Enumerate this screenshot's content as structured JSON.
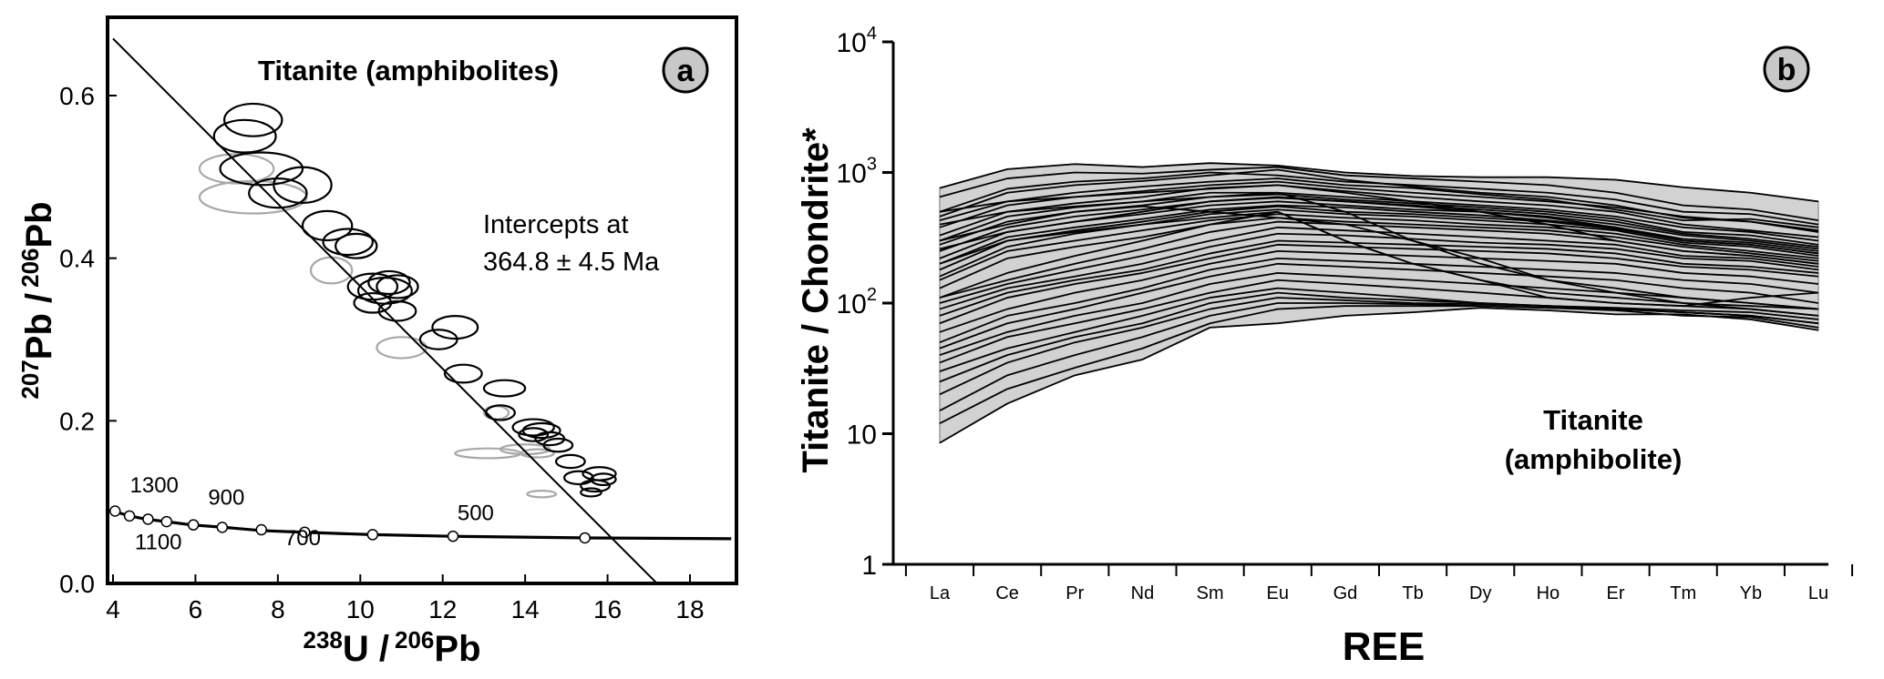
{
  "chart_data": [
    {
      "panel_label": "a",
      "type": "scatter",
      "title": "Titanite (amphibolites)",
      "xlabel": {
        "iso": "238",
        "rest": "U /",
        "iso2": "206",
        "rest2": "Pb"
      },
      "ylabel": {
        "iso": "207",
        "rest": "Pb /",
        "iso2": "206",
        "rest2": "Pb"
      },
      "xlim": [
        4,
        19
      ],
      "ylim": [
        0.0,
        0.68
      ],
      "xticks": [
        4,
        6,
        8,
        10,
        12,
        14,
        16,
        18
      ],
      "xtick_labels": [
        "4",
        "6",
        "8",
        "10",
        "12",
        "14",
        "16",
        "18"
      ],
      "yticks": [
        0.0,
        0.2,
        0.4,
        0.6
      ],
      "ytick_labels": [
        "0.0",
        "0.2",
        "0.4",
        "0.6"
      ],
      "annotation": [
        "Intercepts at",
        "364.8 ± 4.5 Ma"
      ],
      "discordia_line": {
        "x": [
          4.0,
          17.2
        ],
        "y": [
          0.67,
          0.0
        ]
      },
      "concordia": {
        "x": [
          4.0,
          4.4,
          4.8,
          5.3,
          5.9,
          6.7,
          7.6,
          8.6,
          10.3,
          12.2,
          15.5,
          19.0
        ],
        "y": [
          0.089,
          0.083,
          0.079,
          0.076,
          0.072,
          0.069,
          0.065,
          0.063,
          0.06,
          0.058,
          0.056,
          0.055
        ],
        "age_markers": [
          {
            "x": 4.05,
            "y": 0.089
          },
          {
            "x": 4.4,
            "y": 0.083
          },
          {
            "x": 4.85,
            "y": 0.079
          },
          {
            "x": 5.3,
            "y": 0.076
          },
          {
            "x": 5.95,
            "y": 0.072
          },
          {
            "x": 6.65,
            "y": 0.069
          },
          {
            "x": 7.6,
            "y": 0.066
          },
          {
            "x": 8.65,
            "y": 0.063
          },
          {
            "x": 10.3,
            "y": 0.06
          },
          {
            "x": 12.25,
            "y": 0.058
          },
          {
            "x": 15.45,
            "y": 0.056
          }
        ],
        "age_labels": [
          {
            "text": "1300",
            "x": 5.0,
            "y": 0.112
          },
          {
            "text": "900",
            "x": 6.75,
            "y": 0.097
          },
          {
            "text": "1100",
            "x": 5.1,
            "y": 0.042
          },
          {
            "text": "700",
            "x": 8.6,
            "y": 0.047
          },
          {
            "text": "500",
            "x": 12.8,
            "y": 0.078
          }
        ]
      },
      "ellipses_black": [
        {
          "x": 7.4,
          "y": 0.57,
          "rx": 0.7,
          "ry": 0.02
        },
        {
          "x": 7.2,
          "y": 0.55,
          "rx": 0.75,
          "ry": 0.02
        },
        {
          "x": 7.6,
          "y": 0.51,
          "rx": 1.0,
          "ry": 0.02
        },
        {
          "x": 8.0,
          "y": 0.48,
          "rx": 0.7,
          "ry": 0.018
        },
        {
          "x": 8.6,
          "y": 0.49,
          "rx": 0.7,
          "ry": 0.022
        },
        {
          "x": 9.2,
          "y": 0.44,
          "rx": 0.6,
          "ry": 0.018
        },
        {
          "x": 9.7,
          "y": 0.42,
          "rx": 0.6,
          "ry": 0.016
        },
        {
          "x": 9.9,
          "y": 0.415,
          "rx": 0.5,
          "ry": 0.015
        },
        {
          "x": 10.3,
          "y": 0.365,
          "rx": 0.6,
          "ry": 0.016
        },
        {
          "x": 10.6,
          "y": 0.36,
          "rx": 0.65,
          "ry": 0.016
        },
        {
          "x": 10.9,
          "y": 0.365,
          "rx": 0.5,
          "ry": 0.014
        },
        {
          "x": 10.7,
          "y": 0.37,
          "rx": 0.5,
          "ry": 0.014
        },
        {
          "x": 10.3,
          "y": 0.345,
          "rx": 0.45,
          "ry": 0.012
        },
        {
          "x": 10.9,
          "y": 0.335,
          "rx": 0.45,
          "ry": 0.012
        },
        {
          "x": 12.3,
          "y": 0.315,
          "rx": 0.55,
          "ry": 0.014
        },
        {
          "x": 11.9,
          "y": 0.3,
          "rx": 0.45,
          "ry": 0.012
        },
        {
          "x": 12.5,
          "y": 0.258,
          "rx": 0.45,
          "ry": 0.011
        },
        {
          "x": 13.5,
          "y": 0.24,
          "rx": 0.5,
          "ry": 0.01
        },
        {
          "x": 13.4,
          "y": 0.21,
          "rx": 0.35,
          "ry": 0.009
        },
        {
          "x": 14.2,
          "y": 0.192,
          "rx": 0.5,
          "ry": 0.01
        },
        {
          "x": 14.4,
          "y": 0.188,
          "rx": 0.45,
          "ry": 0.009
        },
        {
          "x": 14.2,
          "y": 0.183,
          "rx": 0.35,
          "ry": 0.008
        },
        {
          "x": 14.6,
          "y": 0.178,
          "rx": 0.35,
          "ry": 0.008
        },
        {
          "x": 14.8,
          "y": 0.17,
          "rx": 0.35,
          "ry": 0.008
        },
        {
          "x": 15.1,
          "y": 0.15,
          "rx": 0.35,
          "ry": 0.008
        },
        {
          "x": 15.8,
          "y": 0.135,
          "rx": 0.4,
          "ry": 0.008
        },
        {
          "x": 15.9,
          "y": 0.128,
          "rx": 0.3,
          "ry": 0.007
        },
        {
          "x": 15.3,
          "y": 0.13,
          "rx": 0.35,
          "ry": 0.008
        },
        {
          "x": 15.7,
          "y": 0.12,
          "rx": 0.35,
          "ry": 0.007
        },
        {
          "x": 15.6,
          "y": 0.112,
          "rx": 0.25,
          "ry": 0.005
        }
      ],
      "ellipses_gray": [
        {
          "x": 7.0,
          "y": 0.51,
          "rx": 0.9,
          "ry": 0.018
        },
        {
          "x": 7.4,
          "y": 0.475,
          "rx": 1.3,
          "ry": 0.02
        },
        {
          "x": 9.3,
          "y": 0.385,
          "rx": 0.5,
          "ry": 0.016
        },
        {
          "x": 11.0,
          "y": 0.29,
          "rx": 0.6,
          "ry": 0.013
        },
        {
          "x": 13.3,
          "y": 0.21,
          "rx": 0.3,
          "ry": 0.008
        },
        {
          "x": 13.1,
          "y": 0.16,
          "rx": 0.8,
          "ry": 0.006
        },
        {
          "x": 14.0,
          "y": 0.165,
          "rx": 0.6,
          "ry": 0.006
        },
        {
          "x": 14.3,
          "y": 0.16,
          "rx": 0.4,
          "ry": 0.005
        },
        {
          "x": 14.4,
          "y": 0.11,
          "rx": 0.35,
          "ry": 0.004
        }
      ]
    },
    {
      "panel_label": "b",
      "type": "line",
      "title": [
        "Titanite",
        "(amphibolite)"
      ],
      "xlabel": "REE",
      "ylabel": "Titanite / Chondrite*",
      "y_scale": "log",
      "ylim": [
        1,
        10000
      ],
      "yticks": [
        1,
        10,
        100,
        1000,
        10000
      ],
      "ytick_labels": [
        {
          "base": "1",
          "exp": ""
        },
        {
          "base": "10",
          "exp": ""
        },
        {
          "base": "10",
          "exp": "2"
        },
        {
          "base": "10",
          "exp": "3"
        },
        {
          "base": "10",
          "exp": "4"
        }
      ],
      "categories": [
        "La",
        "Ce",
        "Pr",
        "Nd",
        "Sm",
        "Eu",
        "Gd",
        "Tb",
        "Dy",
        "Ho",
        "Er",
        "Tm",
        "Yb",
        "Lu"
      ],
      "envelope": {
        "upper": [
          760,
          1060,
          1160,
          1100,
          1180,
          1130,
          1000,
          940,
          920,
          920,
          880,
          770,
          700,
          600
        ],
        "lower": [
          8.5,
          17,
          28,
          37,
          65,
          70,
          80,
          85,
          92,
          88,
          82,
          82,
          75,
          62
        ]
      },
      "series": [
        {
          "values": [
            760,
            1060,
            1160,
            1100,
            1180,
            1130,
            1000,
            940,
            920,
            920,
            880,
            770,
            700,
            600
          ]
        },
        {
          "values": [
            650,
            900,
            1000,
            980,
            1050,
            1100,
            950,
            900,
            850,
            800,
            700,
            560,
            520,
            430
          ]
        },
        {
          "values": [
            500,
            750,
            850,
            900,
            1000,
            950,
            850,
            800,
            750,
            700,
            620,
            500,
            480,
            400
          ]
        },
        {
          "values": [
            460,
            700,
            800,
            860,
            950,
            1050,
            880,
            780,
            700,
            650,
            560,
            450,
            420,
            360
          ]
        },
        {
          "values": [
            430,
            600,
            700,
            780,
            850,
            900,
            800,
            760,
            680,
            620,
            520,
            430,
            440,
            380
          ]
        },
        {
          "values": [
            380,
            560,
            650,
            720,
            800,
            850,
            760,
            700,
            650,
            600,
            540,
            460,
            420,
            350
          ]
        },
        {
          "values": [
            330,
            500,
            580,
            650,
            760,
            800,
            720,
            650,
            600,
            560,
            500,
            400,
            360,
            320
          ]
        },
        {
          "values": [
            300,
            460,
            540,
            600,
            700,
            700,
            650,
            600,
            560,
            520,
            460,
            380,
            350,
            300
          ]
        },
        {
          "values": [
            280,
            420,
            500,
            560,
            650,
            680,
            620,
            580,
            540,
            500,
            440,
            350,
            330,
            280
          ]
        },
        {
          "values": [
            250,
            380,
            460,
            520,
            600,
            640,
            600,
            560,
            520,
            480,
            420,
            340,
            310,
            270
          ]
        },
        {
          "values": [
            220,
            350,
            420,
            480,
            560,
            600,
            560,
            520,
            500,
            460,
            400,
            330,
            300,
            260
          ]
        },
        {
          "values": [
            200,
            320,
            380,
            440,
            520,
            560,
            540,
            500,
            470,
            430,
            380,
            310,
            290,
            250
          ]
        },
        {
          "values": [
            180,
            300,
            360,
            420,
            500,
            550,
            500,
            480,
            450,
            420,
            370,
            300,
            280,
            240
          ]
        },
        {
          "values": [
            160,
            270,
            340,
            400,
            480,
            520,
            480,
            460,
            430,
            400,
            360,
            290,
            270,
            230
          ]
        },
        {
          "values": [
            150,
            250,
            300,
            360,
            430,
            480,
            450,
            430,
            400,
            380,
            340,
            280,
            250,
            220
          ]
        },
        {
          "values": [
            130,
            220,
            270,
            320,
            400,
            450,
            420,
            400,
            380,
            360,
            320,
            270,
            240,
            210
          ]
        },
        {
          "values": [
            110,
            150,
            200,
            260,
            350,
            420,
            400,
            380,
            360,
            340,
            300,
            250,
            230,
            200
          ]
        },
        {
          "values": [
            100,
            140,
            180,
            230,
            300,
            380,
            360,
            340,
            320,
            300,
            280,
            230,
            220,
            190
          ]
        },
        {
          "values": [
            90,
            130,
            160,
            200,
            270,
            340,
            330,
            310,
            290,
            280,
            260,
            220,
            210,
            180
          ]
        },
        {
          "values": [
            80,
            120,
            150,
            180,
            240,
            300,
            290,
            280,
            270,
            260,
            240,
            200,
            190,
            170
          ]
        },
        {
          "values": [
            70,
            110,
            140,
            170,
            220,
            280,
            270,
            260,
            250,
            240,
            220,
            190,
            180,
            160
          ]
        },
        {
          "values": [
            60,
            90,
            120,
            150,
            200,
            250,
            240,
            230,
            220,
            210,
            200,
            170,
            160,
            140
          ]
        },
        {
          "values": [
            50,
            80,
            100,
            130,
            180,
            220,
            210,
            200,
            190,
            180,
            170,
            150,
            140,
            120
          ]
        },
        {
          "values": [
            45,
            70,
            90,
            120,
            160,
            200,
            190,
            180,
            170,
            160,
            150,
            130,
            120,
            100
          ]
        },
        {
          "values": [
            40,
            60,
            80,
            100,
            140,
            170,
            160,
            150,
            140,
            130,
            120,
            110,
            100,
            90
          ]
        },
        {
          "values": [
            35,
            55,
            70,
            90,
            120,
            150,
            140,
            130,
            120,
            110,
            100,
            95,
            90,
            80
          ]
        },
        {
          "values": [
            30,
            45,
            60,
            80,
            110,
            130,
            120,
            110,
            100,
            95,
            90,
            85,
            80,
            70
          ]
        },
        {
          "values": [
            25,
            40,
            55,
            70,
            100,
            120,
            110,
            105,
            100,
            95,
            90,
            85,
            80,
            70
          ]
        },
        {
          "values": [
            20,
            35,
            50,
            65,
            90,
            110,
            105,
            100,
            98,
            95,
            92,
            88,
            85,
            75
          ]
        },
        {
          "values": [
            15,
            28,
            40,
            55,
            80,
            100,
            100,
            98,
            95,
            92,
            90,
            85,
            80,
            70
          ]
        },
        {
          "values": [
            12,
            22,
            32,
            45,
            70,
            90,
            95,
            95,
            95,
            92,
            88,
            80,
            78,
            65
          ]
        },
        {
          "values": [
            8.5,
            17,
            28,
            37,
            65,
            70,
            80,
            85,
            92,
            88,
            82,
            82,
            75,
            62
          ]
        },
        {
          "values": [
            110,
            170,
            230,
            300,
            400,
            500,
            300,
            200,
            150,
            110,
            100,
            95,
            110,
            120
          ]
        },
        {
          "values": [
            300,
            400,
            500,
            550,
            500,
            450,
            400,
            300,
            220,
            150,
            130,
            110,
            100,
            90
          ]
        },
        {
          "values": [
            400,
            500,
            550,
            600,
            650,
            700,
            500,
            300,
            200,
            150,
            120,
            100,
            90,
            80
          ]
        },
        {
          "values": [
            200,
            300,
            350,
            400,
            450,
            500,
            300,
            200,
            150,
            120,
            110,
            100,
            95,
            90
          ]
        },
        {
          "values": [
            500,
            600,
            650,
            700,
            750,
            800,
            700,
            600,
            500,
            400,
            300,
            250,
            230,
            200
          ]
        },
        {
          "values": [
            260,
            350,
            420,
            500,
            600,
            650,
            600,
            550,
            500,
            450,
            380,
            300,
            280,
            240
          ]
        }
      ]
    }
  ]
}
